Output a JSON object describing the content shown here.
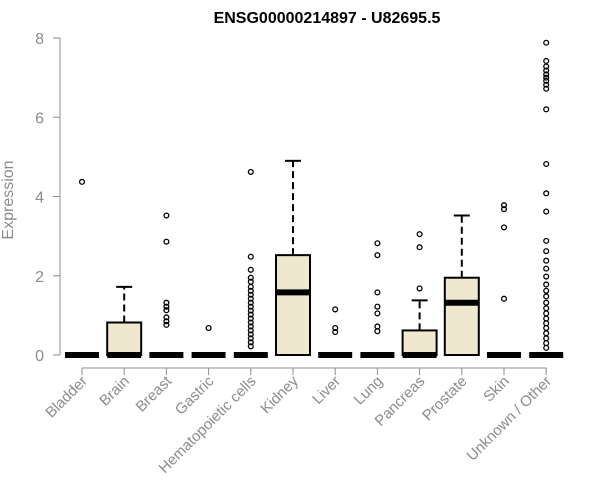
{
  "chart_data": {
    "type": "box",
    "title": "ENSG00000214897 - U82695.5",
    "xlabel": "",
    "ylabel": "Expression",
    "ylim": [
      0,
      8
    ],
    "yticks": [
      0,
      2,
      4,
      6,
      8
    ],
    "grid": false,
    "colors": {
      "box_fill": "#efe8cf",
      "box_stroke": "#000000",
      "axis": "#8c8c8c"
    },
    "categories": [
      "Bladder",
      "Brain",
      "Breast",
      "Gastric",
      "Hematopoietic cells",
      "Kidney",
      "Liver",
      "Lung",
      "Pancreas",
      "Prostate",
      "Skin",
      "Unknown / Other"
    ],
    "boxes": [
      {
        "category": "Bladder",
        "q1": 0,
        "median": 0,
        "q3": 0,
        "whisker_low": 0,
        "whisker_high": 0,
        "outliers": [
          4.37
        ]
      },
      {
        "category": "Brain",
        "q1": 0,
        "median": 0,
        "q3": 0.82,
        "whisker_low": 0,
        "whisker_high": 1.72,
        "outliers": []
      },
      {
        "category": "Breast",
        "q1": 0,
        "median": 0,
        "q3": 0,
        "whisker_low": 0,
        "whisker_high": 0,
        "outliers": [
          3.52,
          2.86,
          1.32,
          1.22,
          1.13,
          0.95,
          0.85,
          0.76
        ]
      },
      {
        "category": "Gastric",
        "q1": 0,
        "median": 0,
        "q3": 0,
        "whisker_low": 0,
        "whisker_high": 0,
        "outliers": [
          0.68
        ]
      },
      {
        "category": "Hematopoietic cells",
        "q1": 0,
        "median": 0,
        "q3": 0,
        "whisker_low": 0,
        "whisker_high": 0,
        "outliers": [
          4.62,
          2.48,
          2.15,
          1.95,
          1.85,
          1.72,
          1.62,
          1.52,
          1.42,
          1.32,
          1.22,
          1.12,
          1.02,
          0.92,
          0.82,
          0.72,
          0.62,
          0.52,
          0.42,
          0.32,
          0.22
        ]
      },
      {
        "category": "Kidney",
        "q1": 0,
        "median": 1.58,
        "q3": 2.52,
        "whisker_low": 0,
        "whisker_high": 4.9,
        "outliers": []
      },
      {
        "category": "Liver",
        "q1": 0,
        "median": 0,
        "q3": 0,
        "whisker_low": 0,
        "whisker_high": 0,
        "outliers": [
          1.15,
          0.68,
          0.58
        ]
      },
      {
        "category": "Lung",
        "q1": 0,
        "median": 0,
        "q3": 0,
        "whisker_low": 0,
        "whisker_high": 0,
        "outliers": [
          2.82,
          2.52,
          1.58,
          1.22,
          1.05,
          0.72,
          0.6
        ]
      },
      {
        "category": "Pancreas",
        "q1": 0,
        "median": 0,
        "q3": 0.62,
        "whisker_low": 0,
        "whisker_high": 1.38,
        "outliers": [
          3.05,
          2.72,
          1.68
        ]
      },
      {
        "category": "Prostate",
        "q1": 0,
        "median": 1.32,
        "q3": 1.95,
        "whisker_low": 0,
        "whisker_high": 3.52,
        "outliers": []
      },
      {
        "category": "Skin",
        "q1": 0,
        "median": 0,
        "q3": 0,
        "whisker_low": 0,
        "whisker_high": 0,
        "outliers": [
          3.78,
          3.68,
          3.22,
          1.42
        ]
      },
      {
        "category": "Unknown / Other",
        "q1": 0,
        "median": 0,
        "q3": 0,
        "whisker_low": 0,
        "whisker_high": 0,
        "outliers": [
          7.88,
          7.42,
          7.28,
          7.18,
          7.08,
          7.0,
          6.92,
          6.82,
          6.72,
          6.2,
          4.82,
          4.08,
          3.62,
          2.88,
          2.62,
          2.38,
          2.18,
          1.98,
          1.78,
          1.62,
          1.48,
          1.32,
          1.18,
          1.05,
          0.92,
          0.8,
          0.68,
          0.55,
          0.42,
          0.3,
          0.18
        ]
      }
    ]
  }
}
